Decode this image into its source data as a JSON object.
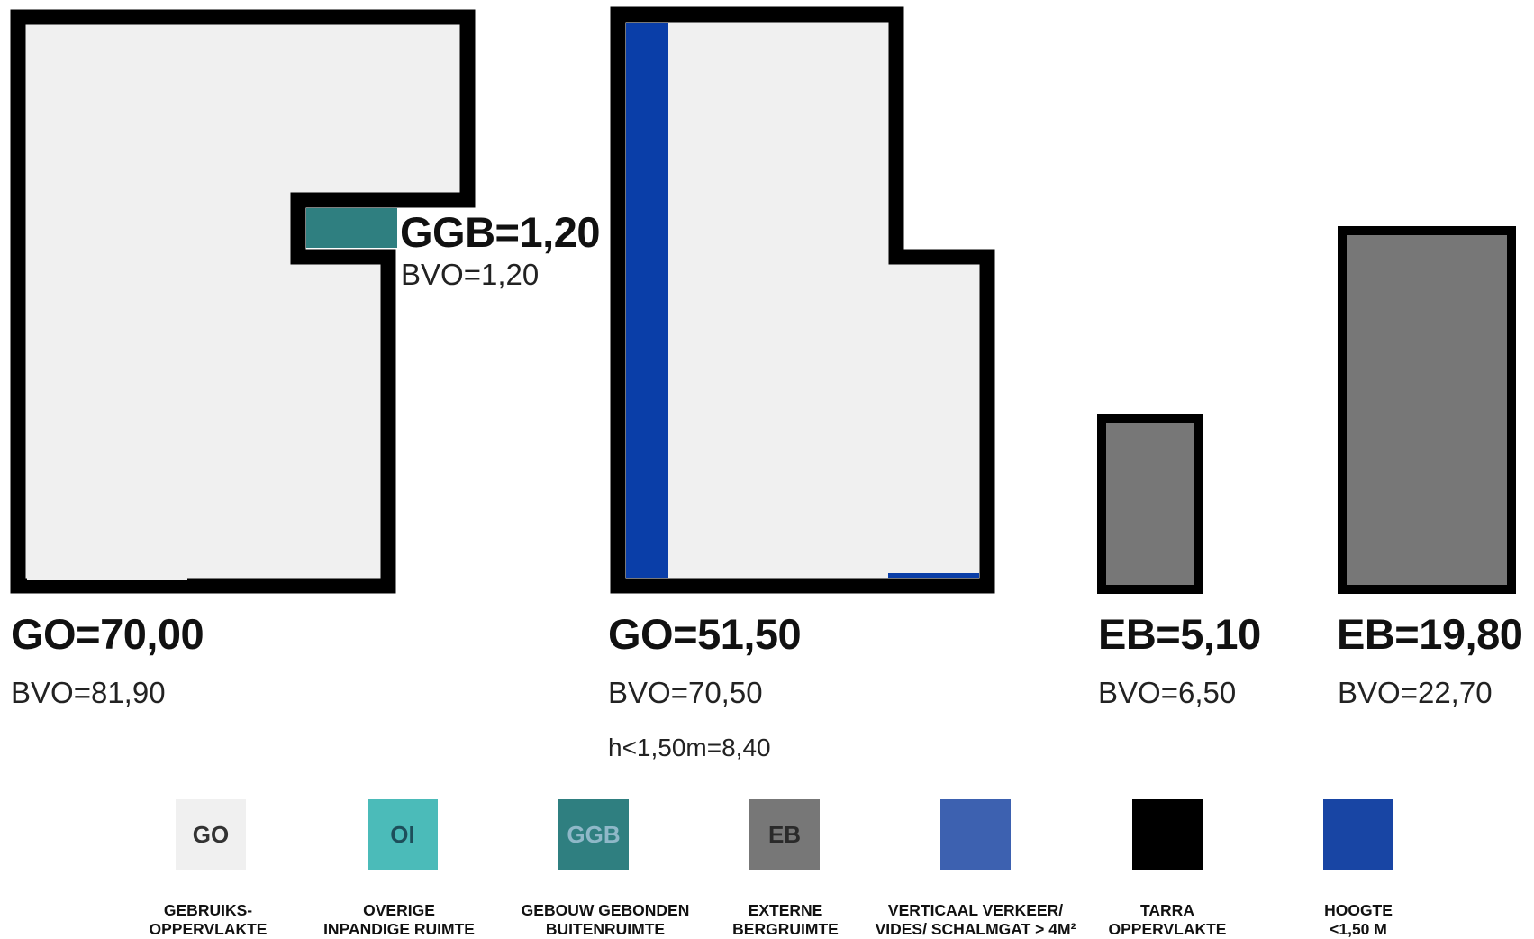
{
  "colors": {
    "go": "#f0f0f0",
    "oi": "#4bbbb9",
    "ggb": "#2f7f80",
    "eb": "#777777",
    "vv": "#3d61b0",
    "tarra": "#000000",
    "hoogte": "#1845a4",
    "hoogte_band": "#0a3ea8"
  },
  "units": [
    {
      "id": "unit1",
      "main": "GO=70,00",
      "bvo": "BVO=81,90"
    },
    {
      "id": "unit2",
      "main": "GO=51,50",
      "bvo": "BVO=70,50",
      "extra": "h<1,50m=8,40"
    },
    {
      "id": "unit3",
      "main": "EB=5,10",
      "bvo": "BVO=6,50"
    },
    {
      "id": "unit4",
      "main": "EB=19,80",
      "bvo": "BVO=22,70"
    }
  ],
  "ggb_annotation": {
    "main": "GGB=1,20",
    "bvo": "BVO=1,20"
  },
  "legend": [
    {
      "code": "GO",
      "label": "GEBRUIKS-\nOPPERVLAKTE",
      "color": "#f0f0f0",
      "text_color": "#333333",
      "icon": "go-swatch"
    },
    {
      "code": "OI",
      "label": "OVERIGE\nINPANDIGE RUIMTE",
      "color": "#4bbbb9",
      "text_color": "#1d4e5a",
      "icon": "oi-swatch"
    },
    {
      "code": "GGB",
      "label": "GEBOUW GEBONDEN\nBUITENRUIMTE",
      "color": "#2f7f80",
      "text_color": "#8fb8c8",
      "icon": "ggb-swatch"
    },
    {
      "code": "EB",
      "label": "EXTERNE\nBERGRUIMTE",
      "color": "#777777",
      "text_color": "#2a2a2a",
      "icon": "eb-swatch"
    },
    {
      "code": "",
      "label": "VERTICAAL VERKEER/\nVIDES/ SCHALMGAT > 4M²",
      "color": "#3d61b0",
      "text_color": "#ffffff",
      "icon": "vv-swatch"
    },
    {
      "code": "",
      "label": "TARRA\nOPPERVLAKTE",
      "color": "#000000",
      "text_color": "#ffffff",
      "icon": "tarra-swatch"
    },
    {
      "code": "",
      "label": "HOOGTE\n<1,50 M",
      "color": "#1845a4",
      "text_color": "#ffffff",
      "icon": "hoogte-swatch"
    }
  ]
}
